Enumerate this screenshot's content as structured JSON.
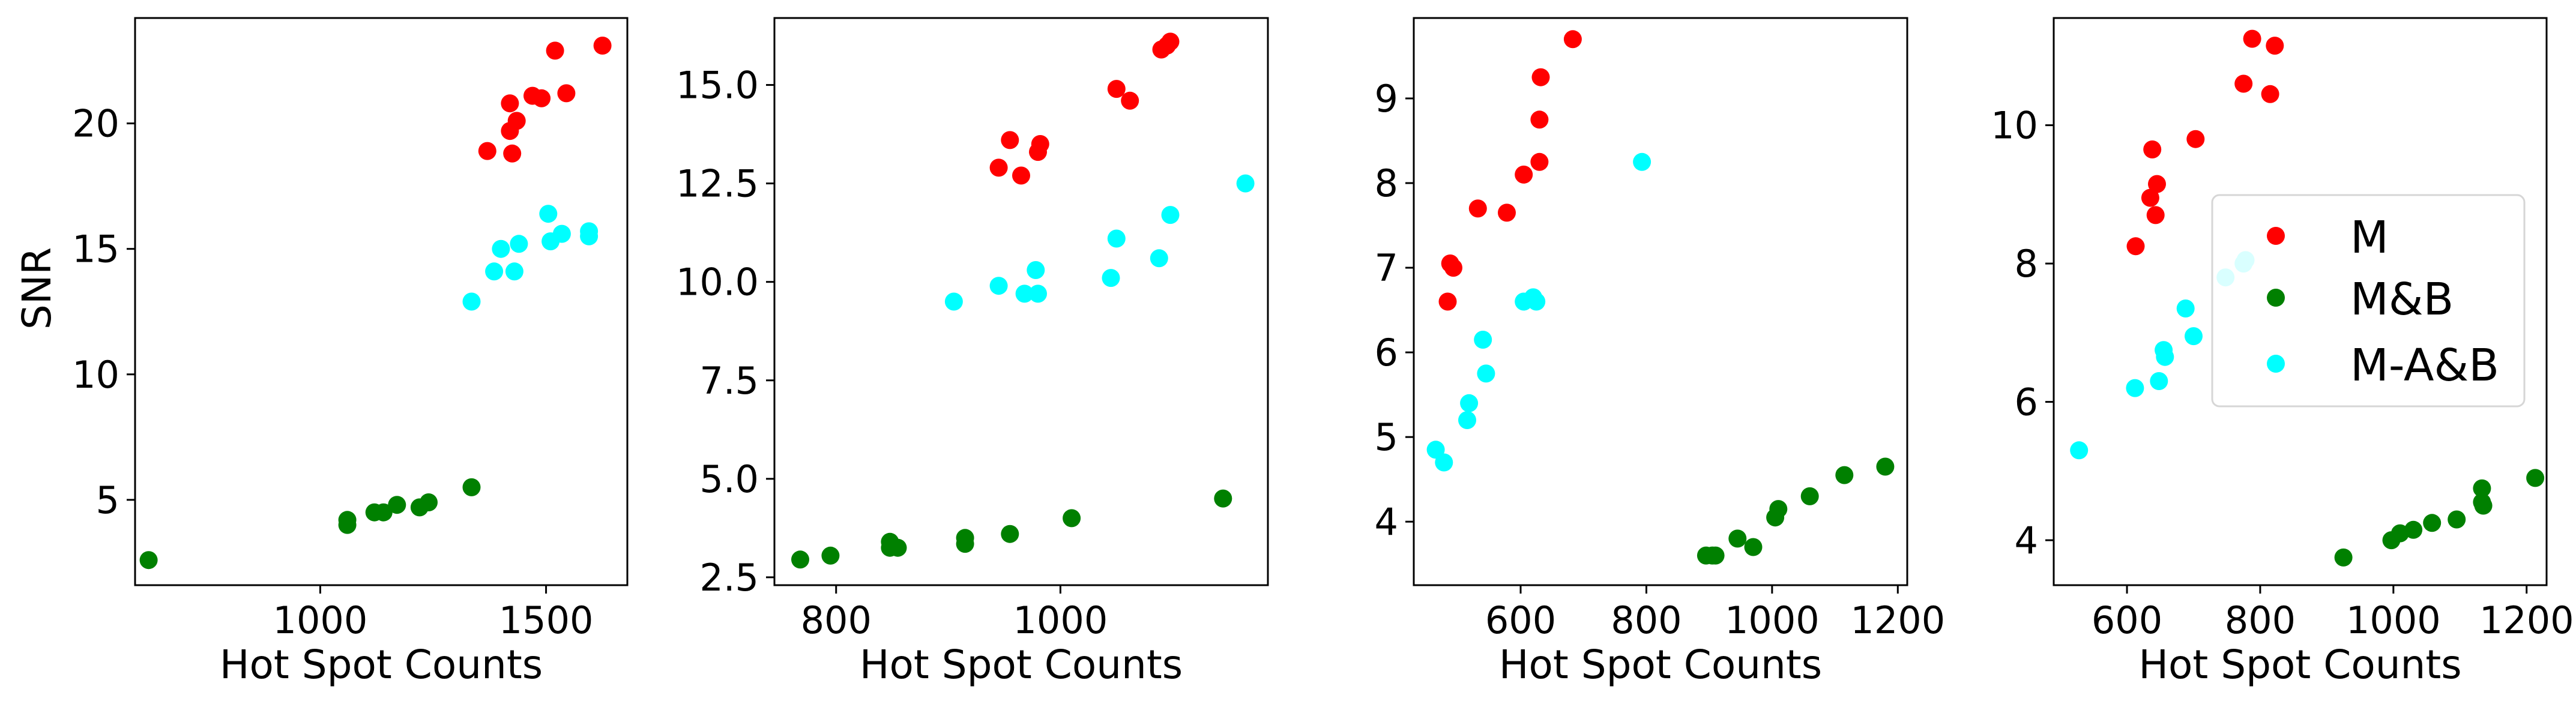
{
  "chart_data": [
    {
      "type": "scatter",
      "xlabel": "Hot Spot Counts",
      "ylabel": "SNR",
      "xlim": [
        590,
        1680
      ],
      "ylim": [
        1.6,
        24.2
      ],
      "xticks": [
        1000,
        1500
      ],
      "yticks": [
        5,
        10,
        15,
        20
      ],
      "ytick_labels": [
        "5",
        "10",
        "15",
        "20"
      ],
      "series": [
        {
          "color": "#ff0000",
          "points": [
            [
              1370,
              18.9
            ],
            [
              1420,
              20.8
            ],
            [
              1420,
              19.7
            ],
            [
              1435,
              20.1
            ],
            [
              1425,
              18.8
            ],
            [
              1470,
              21.1
            ],
            [
              1490,
              21.0
            ],
            [
              1520,
              22.9
            ],
            [
              1545,
              21.2
            ],
            [
              1625,
              23.1
            ]
          ]
        },
        {
          "color": "#008000",
          "points": [
            [
              620,
              2.6
            ],
            [
              1060,
              4.2
            ],
            [
              1060,
              4.0
            ],
            [
              1120,
              4.5
            ],
            [
              1140,
              4.5
            ],
            [
              1170,
              4.8
            ],
            [
              1220,
              4.7
            ],
            [
              1240,
              4.9
            ],
            [
              1335,
              5.5
            ]
          ]
        },
        {
          "color": "#00ffff",
          "points": [
            [
              1335,
              12.9
            ],
            [
              1385,
              14.1
            ],
            [
              1400,
              15.0
            ],
            [
              1430,
              14.1
            ],
            [
              1440,
              15.2
            ],
            [
              1505,
              16.4
            ],
            [
              1510,
              15.3
            ],
            [
              1535,
              15.6
            ],
            [
              1595,
              15.7
            ],
            [
              1595,
              15.5
            ]
          ]
        }
      ]
    },
    {
      "type": "scatter",
      "xlabel": "Hot Spot Counts",
      "ylabel": "",
      "xlim": [
        745,
        1185
      ],
      "ylim": [
        2.3,
        16.7
      ],
      "xticks": [
        800,
        1000
      ],
      "yticks": [
        2.5,
        5.0,
        7.5,
        10.0,
        12.5,
        15.0
      ],
      "ytick_labels": [
        "2.5",
        "5.0",
        "7.5",
        "10.0",
        "12.5",
        "15.0"
      ],
      "series": [
        {
          "color": "#ff0000",
          "points": [
            [
              945,
              12.9
            ],
            [
              955,
              13.6
            ],
            [
              965,
              12.7
            ],
            [
              980,
              13.3
            ],
            [
              982,
              13.5
            ],
            [
              1050,
              14.9
            ],
            [
              1062,
              14.6
            ],
            [
              1090,
              15.9
            ],
            [
              1095,
              16.0
            ],
            [
              1098,
              16.1
            ]
          ]
        },
        {
          "color": "#008000",
          "points": [
            [
              768,
              2.95
            ],
            [
              795,
              3.05
            ],
            [
              848,
              3.4
            ],
            [
              848,
              3.25
            ],
            [
              855,
              3.25
            ],
            [
              915,
              3.5
            ],
            [
              915,
              3.35
            ],
            [
              955,
              3.6
            ],
            [
              1010,
              4.0
            ],
            [
              1145,
              4.5
            ]
          ]
        },
        {
          "color": "#00ffff",
          "points": [
            [
              905,
              9.5
            ],
            [
              945,
              9.9
            ],
            [
              968,
              9.7
            ],
            [
              980,
              9.7
            ],
            [
              978,
              10.3
            ],
            [
              1045,
              10.1
            ],
            [
              1050,
              11.1
            ],
            [
              1088,
              10.6
            ],
            [
              1098,
              11.7
            ],
            [
              1165,
              12.5
            ]
          ]
        }
      ]
    },
    {
      "type": "scatter",
      "xlabel": "Hot Spot Counts",
      "ylabel": "",
      "xlim": [
        430,
        1215
      ],
      "ylim": [
        3.25,
        9.95
      ],
      "xticks": [
        600,
        800,
        1000,
        1200
      ],
      "yticks": [
        4,
        5,
        6,
        7,
        8,
        9
      ],
      "ytick_labels": [
        "4",
        "5",
        "6",
        "7",
        "8",
        "9"
      ],
      "series": [
        {
          "color": "#ff0000",
          "points": [
            [
              484,
              6.6
            ],
            [
              488,
              7.05
            ],
            [
              493,
              7.0
            ],
            [
              532,
              7.7
            ],
            [
              578,
              7.65
            ],
            [
              605,
              8.1
            ],
            [
              630,
              8.25
            ],
            [
              630,
              8.75
            ],
            [
              632,
              9.25
            ],
            [
              683,
              9.7
            ]
          ]
        },
        {
          "color": "#008000",
          "points": [
            [
              895,
              3.6
            ],
            [
              905,
              3.6
            ],
            [
              910,
              3.6
            ],
            [
              945,
              3.8
            ],
            [
              970,
              3.7
            ],
            [
              1005,
              4.05
            ],
            [
              1010,
              4.15
            ],
            [
              1060,
              4.3
            ],
            [
              1115,
              4.55
            ],
            [
              1180,
              4.65
            ]
          ]
        },
        {
          "color": "#00ffff",
          "points": [
            [
              465,
              4.85
            ],
            [
              478,
              4.7
            ],
            [
              515,
              5.2
            ],
            [
              518,
              5.4
            ],
            [
              540,
              6.15
            ],
            [
              545,
              5.75
            ],
            [
              605,
              6.6
            ],
            [
              620,
              6.65
            ],
            [
              625,
              6.6
            ],
            [
              793,
              8.25
            ]
          ]
        }
      ]
    },
    {
      "type": "scatter",
      "xlabel": "Hot Spot Counts",
      "ylabel": "",
      "xlim": [
        490,
        1230
      ],
      "ylim": [
        3.35,
        11.55
      ],
      "xticks": [
        600,
        800,
        1000,
        1200
      ],
      "yticks": [
        4,
        6,
        8,
        10
      ],
      "ytick_labels": [
        "4",
        "6",
        "8",
        "10"
      ],
      "legend": {
        "placement": "center-right",
        "entries": [
          {
            "label": "M",
            "color": "#ff0000"
          },
          {
            "label": "M&B",
            "color": "#008000"
          },
          {
            "label": "M-A&B",
            "color": "#00ffff"
          }
        ]
      },
      "series": [
        {
          "color": "#ff0000",
          "points": [
            [
              613,
              8.25
            ],
            [
              635,
              8.95
            ],
            [
              638,
              9.65
            ],
            [
              643,
              8.7
            ],
            [
              645,
              9.15
            ],
            [
              703,
              9.8
            ],
            [
              775,
              10.6
            ],
            [
              788,
              11.25
            ],
            [
              815,
              10.45
            ],
            [
              822,
              11.15
            ]
          ]
        },
        {
          "color": "#008000",
          "points": [
            [
              925,
              3.75
            ],
            [
              997,
              4.0
            ],
            [
              1010,
              4.1
            ],
            [
              1030,
              4.15
            ],
            [
              1058,
              4.25
            ],
            [
              1095,
              4.3
            ],
            [
              1133,
              4.75
            ],
            [
              1133,
              4.55
            ],
            [
              1135,
              4.5
            ],
            [
              1213,
              4.9
            ]
          ]
        },
        {
          "color": "#00ffff",
          "points": [
            [
              528,
              5.3
            ],
            [
              612,
              6.2
            ],
            [
              648,
              6.3
            ],
            [
              655,
              6.75
            ],
            [
              657,
              6.65
            ],
            [
              688,
              7.35
            ],
            [
              700,
              6.95
            ],
            [
              748,
              7.8
            ],
            [
              775,
              8.0
            ],
            [
              778,
              8.05
            ]
          ]
        }
      ]
    }
  ]
}
